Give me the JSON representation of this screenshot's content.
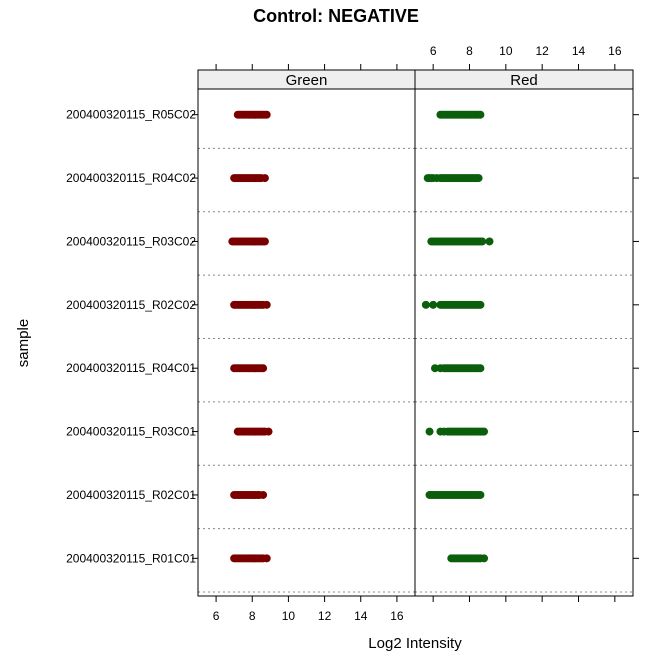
{
  "chart_data": {
    "type": "scatter",
    "title": "Control: NEGATIVE",
    "xlabel": "Log2 Intensity",
    "ylabel": "sample",
    "xlim": [
      5,
      17
    ],
    "x_ticks": [
      6,
      8,
      10,
      12,
      14,
      16
    ],
    "panels": [
      "Green",
      "Red"
    ],
    "categories": [
      "200400320115_R05C02",
      "200400320115_R04C02",
      "200400320115_R03C02",
      "200400320115_R02C02",
      "200400320115_R04C01",
      "200400320115_R03C01",
      "200400320115_R02C01",
      "200400320115_R01C01"
    ],
    "series": [
      {
        "panel": "Green",
        "color": "#7a0000",
        "samples": [
          {
            "sample": "200400320115_R05C02",
            "values": [
              7.2,
              7.3,
              7.4,
              7.5,
              7.6,
              7.7,
              7.8,
              7.9,
              8.0,
              8.1,
              8.2,
              8.3,
              8.4,
              8.5,
              8.6,
              8.7,
              8.8
            ]
          },
          {
            "sample": "200400320115_R04C02",
            "values": [
              7.0,
              7.1,
              7.2,
              7.3,
              7.4,
              7.5,
              7.6,
              7.7,
              7.8,
              7.9,
              8.0,
              8.1,
              8.2,
              8.3,
              8.4,
              8.5,
              8.7
            ]
          },
          {
            "sample": "200400320115_R03C02",
            "values": [
              6.9,
              7.0,
              7.1,
              7.2,
              7.3,
              7.4,
              7.5,
              7.6,
              7.7,
              7.8,
              7.9,
              8.0,
              8.1,
              8.2,
              8.3,
              8.4,
              8.5,
              8.6,
              8.7
            ]
          },
          {
            "sample": "200400320115_R02C02",
            "values": [
              7.0,
              7.1,
              7.2,
              7.3,
              7.4,
              7.5,
              7.6,
              7.7,
              7.8,
              7.9,
              8.0,
              8.1,
              8.2,
              8.3,
              8.4,
              8.5,
              8.6,
              8.8
            ]
          },
          {
            "sample": "200400320115_R04C01",
            "values": [
              7.0,
              7.1,
              7.2,
              7.3,
              7.4,
              7.5,
              7.6,
              7.7,
              7.8,
              7.9,
              8.0,
              8.1,
              8.2,
              8.3,
              8.4,
              8.5,
              8.6
            ]
          },
          {
            "sample": "200400320115_R03C01",
            "values": [
              7.2,
              7.3,
              7.4,
              7.5,
              7.6,
              7.7,
              7.8,
              7.9,
              8.0,
              8.1,
              8.2,
              8.3,
              8.4,
              8.5,
              8.6,
              8.7,
              8.9
            ]
          },
          {
            "sample": "200400320115_R02C01",
            "values": [
              7.0,
              7.1,
              7.2,
              7.3,
              7.4,
              7.5,
              7.6,
              7.7,
              7.8,
              7.9,
              8.0,
              8.1,
              8.2,
              8.3,
              8.4,
              8.6
            ]
          },
          {
            "sample": "200400320115_R01C01",
            "values": [
              7.0,
              7.1,
              7.2,
              7.3,
              7.4,
              7.5,
              7.6,
              7.7,
              7.8,
              7.9,
              8.0,
              8.1,
              8.2,
              8.3,
              8.4,
              8.5,
              8.6,
              8.8
            ]
          }
        ]
      },
      {
        "panel": "Red",
        "color": "#0b5e0b",
        "samples": [
          {
            "sample": "200400320115_R05C02",
            "values": [
              6.4,
              6.5,
              6.6,
              6.7,
              6.8,
              6.9,
              7.0,
              7.1,
              7.2,
              7.3,
              7.4,
              7.5,
              7.6,
              7.7,
              7.8,
              7.9,
              8.0,
              8.1,
              8.2,
              8.3,
              8.4,
              8.5,
              8.6
            ]
          },
          {
            "sample": "200400320115_R04C02",
            "values": [
              5.7,
              5.8,
              5.9,
              6.0,
              6.2,
              6.4,
              6.5,
              6.6,
              6.7,
              6.8,
              6.9,
              7.0,
              7.1,
              7.2,
              7.3,
              7.4,
              7.5,
              7.6,
              7.7,
              7.8,
              7.9,
              8.0,
              8.1,
              8.2,
              8.3,
              8.4,
              8.5
            ]
          },
          {
            "sample": "200400320115_R03C02",
            "values": [
              5.9,
              6.0,
              6.1,
              6.2,
              6.3,
              6.4,
              6.5,
              6.6,
              6.7,
              6.8,
              6.9,
              7.0,
              7.1,
              7.2,
              7.3,
              7.4,
              7.5,
              7.6,
              7.7,
              7.8,
              7.9,
              8.0,
              8.1,
              8.2,
              8.3,
              8.4,
              8.5,
              8.6,
              8.7,
              9.1
            ]
          },
          {
            "sample": "200400320115_R02C02",
            "values": [
              5.6,
              6.0,
              6.4,
              6.5,
              6.6,
              6.7,
              6.8,
              6.9,
              7.0,
              7.1,
              7.2,
              7.3,
              7.4,
              7.5,
              7.6,
              7.7,
              7.8,
              7.9,
              8.0,
              8.1,
              8.2,
              8.3,
              8.4,
              8.5,
              8.6
            ]
          },
          {
            "sample": "200400320115_R04C01",
            "values": [
              6.1,
              6.4,
              6.6,
              6.7,
              6.8,
              6.9,
              7.0,
              7.1,
              7.2,
              7.3,
              7.4,
              7.5,
              7.6,
              7.7,
              7.8,
              7.9,
              8.0,
              8.1,
              8.2,
              8.3,
              8.4,
              8.5,
              8.6
            ]
          },
          {
            "sample": "200400320115_R03C01",
            "values": [
              5.8,
              6.4,
              6.6,
              6.8,
              6.9,
              7.0,
              7.1,
              7.2,
              7.3,
              7.4,
              7.5,
              7.6,
              7.7,
              7.8,
              7.9,
              8.0,
              8.1,
              8.2,
              8.3,
              8.4,
              8.5,
              8.6,
              8.7,
              8.8
            ]
          },
          {
            "sample": "200400320115_R02C01",
            "values": [
              5.8,
              5.9,
              6.0,
              6.1,
              6.2,
              6.3,
              6.4,
              6.5,
              6.6,
              6.7,
              6.8,
              6.9,
              7.0,
              7.1,
              7.2,
              7.3,
              7.4,
              7.5,
              7.6,
              7.7,
              7.8,
              7.9,
              8.0,
              8.1,
              8.2,
              8.3,
              8.4,
              8.5,
              8.6
            ]
          },
          {
            "sample": "200400320115_R01C01",
            "values": [
              7.0,
              7.1,
              7.2,
              7.3,
              7.4,
              7.5,
              7.6,
              7.7,
              7.8,
              7.9,
              8.0,
              8.1,
              8.2,
              8.3,
              8.4,
              8.5,
              8.6,
              8.8
            ]
          }
        ]
      }
    ],
    "grid": false,
    "strip_background": "#efefef",
    "separator_line_color": "#888888"
  }
}
